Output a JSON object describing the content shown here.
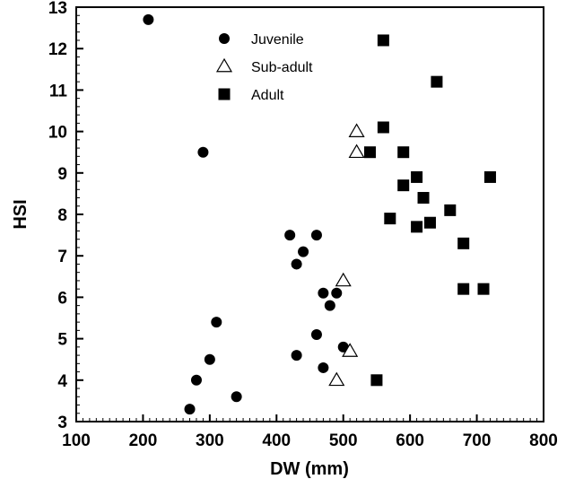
{
  "chart_data": {
    "type": "scatter",
    "title": "",
    "xlabel": "DW (mm)",
    "ylabel": "HSI",
    "xlim": [
      100,
      800
    ],
    "ylim": [
      3,
      13
    ],
    "xticks": [
      100,
      200,
      300,
      400,
      500,
      600,
      700,
      800
    ],
    "yticks": [
      3,
      4,
      5,
      6,
      7,
      8,
      9,
      10,
      11,
      12,
      13
    ],
    "grid": false,
    "legend_position": "top-center",
    "series": [
      {
        "name": "Juvenile",
        "marker": "filled-circle",
        "color": "#000000",
        "points": [
          [
            208,
            12.7
          ],
          [
            290,
            9.5
          ],
          [
            270,
            3.3
          ],
          [
            280,
            4.0
          ],
          [
            300,
            4.5
          ],
          [
            310,
            5.4
          ],
          [
            340,
            3.6
          ],
          [
            420,
            7.5
          ],
          [
            430,
            6.8
          ],
          [
            440,
            7.1
          ],
          [
            460,
            7.5
          ],
          [
            430,
            4.6
          ],
          [
            460,
            5.1
          ],
          [
            470,
            6.1
          ],
          [
            490,
            6.1
          ],
          [
            480,
            5.8
          ],
          [
            470,
            4.3
          ],
          [
            500,
            4.8
          ]
        ]
      },
      {
        "name": "Sub-adult",
        "marker": "open-triangle",
        "color": "#000000",
        "points": [
          [
            520,
            10.0
          ],
          [
            520,
            9.5
          ],
          [
            500,
            6.4
          ],
          [
            510,
            4.7
          ],
          [
            490,
            4.0
          ]
        ]
      },
      {
        "name": "Adult",
        "marker": "filled-square",
        "color": "#000000",
        "points": [
          [
            560,
            12.2
          ],
          [
            640,
            11.2
          ],
          [
            560,
            10.1
          ],
          [
            540,
            9.5
          ],
          [
            590,
            9.5
          ],
          [
            610,
            8.9
          ],
          [
            590,
            8.7
          ],
          [
            720,
            8.9
          ],
          [
            620,
            8.4
          ],
          [
            660,
            8.1
          ],
          [
            570,
            7.9
          ],
          [
            610,
            7.7
          ],
          [
            630,
            7.8
          ],
          [
            680,
            7.3
          ],
          [
            680,
            6.2
          ],
          [
            710,
            6.2
          ],
          [
            550,
            4.0
          ]
        ]
      }
    ]
  }
}
